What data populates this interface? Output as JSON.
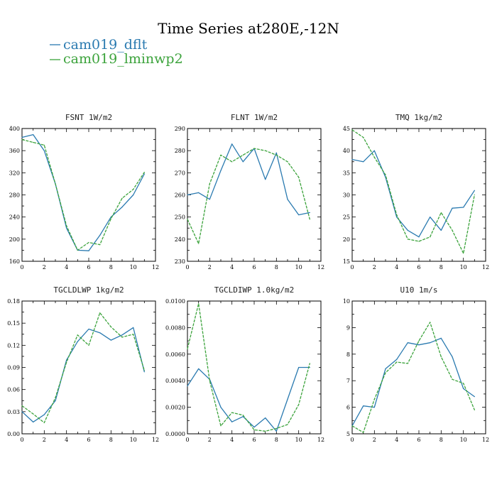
{
  "figure": {
    "title": "Time Series at280E,-12N",
    "legend": [
      {
        "label": "cam019_dflt",
        "color": "#2a7ab0",
        "dash": "solid"
      },
      {
        "label": "cam019_lminwp2",
        "color": "#3ca33c",
        "dash": "dashed"
      }
    ]
  },
  "chart_data": [
    {
      "type": "line",
      "name": "FSNT",
      "title": "FSNT",
      "units": "1W/m2",
      "x": [
        0,
        1,
        2,
        3,
        4,
        5,
        6,
        7,
        8,
        9,
        10,
        11
      ],
      "xlim": [
        0,
        12
      ],
      "xticks": [
        "0",
        "2",
        "4",
        "6",
        "8",
        "10",
        "12"
      ],
      "ylim": [
        160,
        400
      ],
      "yticks": [
        "160",
        "200",
        "240",
        "280",
        "320",
        "360",
        "400"
      ],
      "series": [
        {
          "name": "cam019_dflt",
          "values": [
            384,
            389,
            360,
            300,
            220,
            180,
            179,
            207,
            240,
            258,
            280,
            318
          ]
        },
        {
          "name": "cam019_lminwp2",
          "values": [
            380,
            375,
            370,
            300,
            224,
            180,
            194,
            190,
            237,
            274,
            290,
            321
          ]
        }
      ]
    },
    {
      "type": "line",
      "name": "FLNT",
      "title": "FLNT",
      "units": "1W/m2",
      "x": [
        0,
        1,
        2,
        3,
        4,
        5,
        6,
        7,
        8,
        9,
        10,
        11
      ],
      "xlim": [
        0,
        12
      ],
      "xticks": [
        "0",
        "2",
        "4",
        "6",
        "8",
        "10",
        "12"
      ],
      "ylim": [
        230,
        290
      ],
      "yticks": [
        "230",
        "240",
        "250",
        "260",
        "270",
        "280",
        "290"
      ],
      "series": [
        {
          "name": "cam019_dflt",
          "values": [
            260,
            261,
            258,
            271,
            283,
            275,
            281,
            267,
            279,
            258,
            251,
            252
          ]
        },
        {
          "name": "cam019_lminwp2",
          "values": [
            249,
            238,
            265,
            278,
            275,
            278,
            281,
            280,
            278,
            275,
            268,
            249
          ]
        }
      ]
    },
    {
      "type": "line",
      "name": "TMQ",
      "title": "TMQ",
      "units": "1kg/m2",
      "x": [
        0,
        1,
        2,
        3,
        4,
        5,
        6,
        7,
        8,
        9,
        10,
        11
      ],
      "xlim": [
        0,
        12
      ],
      "xticks": [
        "0",
        "2",
        "4",
        "6",
        "8",
        "10",
        "12"
      ],
      "ylim": [
        15,
        45
      ],
      "yticks": [
        "15",
        "20",
        "25",
        "30",
        "35",
        "40",
        "45"
      ],
      "series": [
        {
          "name": "cam019_dflt",
          "values": [
            38,
            37.5,
            40,
            34,
            25,
            22,
            20.5,
            25,
            22,
            27,
            27.2,
            31
          ]
        },
        {
          "name": "cam019_lminwp2",
          "values": [
            44.7,
            43,
            38.5,
            34.5,
            25.5,
            20,
            19.5,
            20.5,
            26,
            22,
            16.8,
            30
          ]
        }
      ]
    },
    {
      "type": "line",
      "name": "TGCLDLWP",
      "title": "TGCLDLWP",
      "units": "1kg/m2",
      "x": [
        0,
        1,
        2,
        3,
        4,
        5,
        6,
        7,
        8,
        9,
        10,
        11
      ],
      "xlim": [
        0,
        12
      ],
      "xticks": [
        "0",
        "2",
        "4",
        "6",
        "8",
        "10",
        "12"
      ],
      "ylim": [
        0.0,
        0.18
      ],
      "yticks": [
        "0.00",
        "0.03",
        "0.06",
        "0.09",
        "0.12",
        "0.15",
        "0.18"
      ],
      "series": [
        {
          "name": "cam019_dflt",
          "values": [
            0.03,
            0.016,
            0.026,
            0.045,
            0.1,
            0.125,
            0.142,
            0.137,
            0.127,
            0.134,
            0.144,
            0.084
          ]
        },
        {
          "name": "cam019_lminwp2",
          "values": [
            0.038,
            0.027,
            0.015,
            0.049,
            0.097,
            0.134,
            0.12,
            0.164,
            0.145,
            0.131,
            0.135,
            0.086
          ]
        }
      ]
    },
    {
      "type": "line",
      "name": "TGCLDIWP",
      "title": "TGCLDIWP",
      "units": "1.0kg/m2",
      "x": [
        0,
        1,
        2,
        3,
        4,
        5,
        6,
        7,
        8,
        9,
        10,
        11
      ],
      "xlim": [
        0,
        12
      ],
      "xticks": [
        "0",
        "2",
        "4",
        "6",
        "8",
        "10",
        "12"
      ],
      "ylim": [
        0.0,
        0.01
      ],
      "yticks": [
        "0.0000",
        "0.0020",
        "0.0040",
        "0.0060",
        "0.0080",
        "0.0100"
      ],
      "series": [
        {
          "name": "cam019_dflt",
          "values": [
            0.0036,
            0.0049,
            0.0041,
            0.002,
            0.0009,
            0.0013,
            0.0005,
            0.0012,
            0.0002,
            0.0026,
            0.005,
            0.005
          ]
        },
        {
          "name": "cam019_lminwp2",
          "values": [
            0.0064,
            0.0098,
            0.004,
            0.0006,
            0.0016,
            0.0014,
            0.0003,
            0.0002,
            0.0004,
            0.0007,
            0.0022,
            0.0053
          ]
        }
      ]
    },
    {
      "type": "line",
      "name": "U10",
      "title": "U10",
      "units": "1m/s",
      "x": [
        0,
        1,
        2,
        3,
        4,
        5,
        6,
        7,
        8,
        9,
        10,
        11
      ],
      "xlim": [
        0,
        12
      ],
      "xticks": [
        "0",
        "2",
        "4",
        "6",
        "8",
        "10",
        "12"
      ],
      "ylim": [
        5,
        10
      ],
      "yticks": [
        "5",
        "6",
        "7",
        "8",
        "9",
        "10"
      ],
      "series": [
        {
          "name": "cam019_dflt",
          "values": [
            5.3,
            6.05,
            6.0,
            7.45,
            7.8,
            8.43,
            8.35,
            8.43,
            8.6,
            7.9,
            6.7,
            6.4
          ]
        },
        {
          "name": "cam019_lminwp2",
          "values": [
            5.3,
            5.05,
            6.3,
            7.3,
            7.7,
            7.65,
            8.5,
            9.2,
            7.9,
            7.05,
            6.9,
            5.9
          ]
        }
      ]
    }
  ]
}
